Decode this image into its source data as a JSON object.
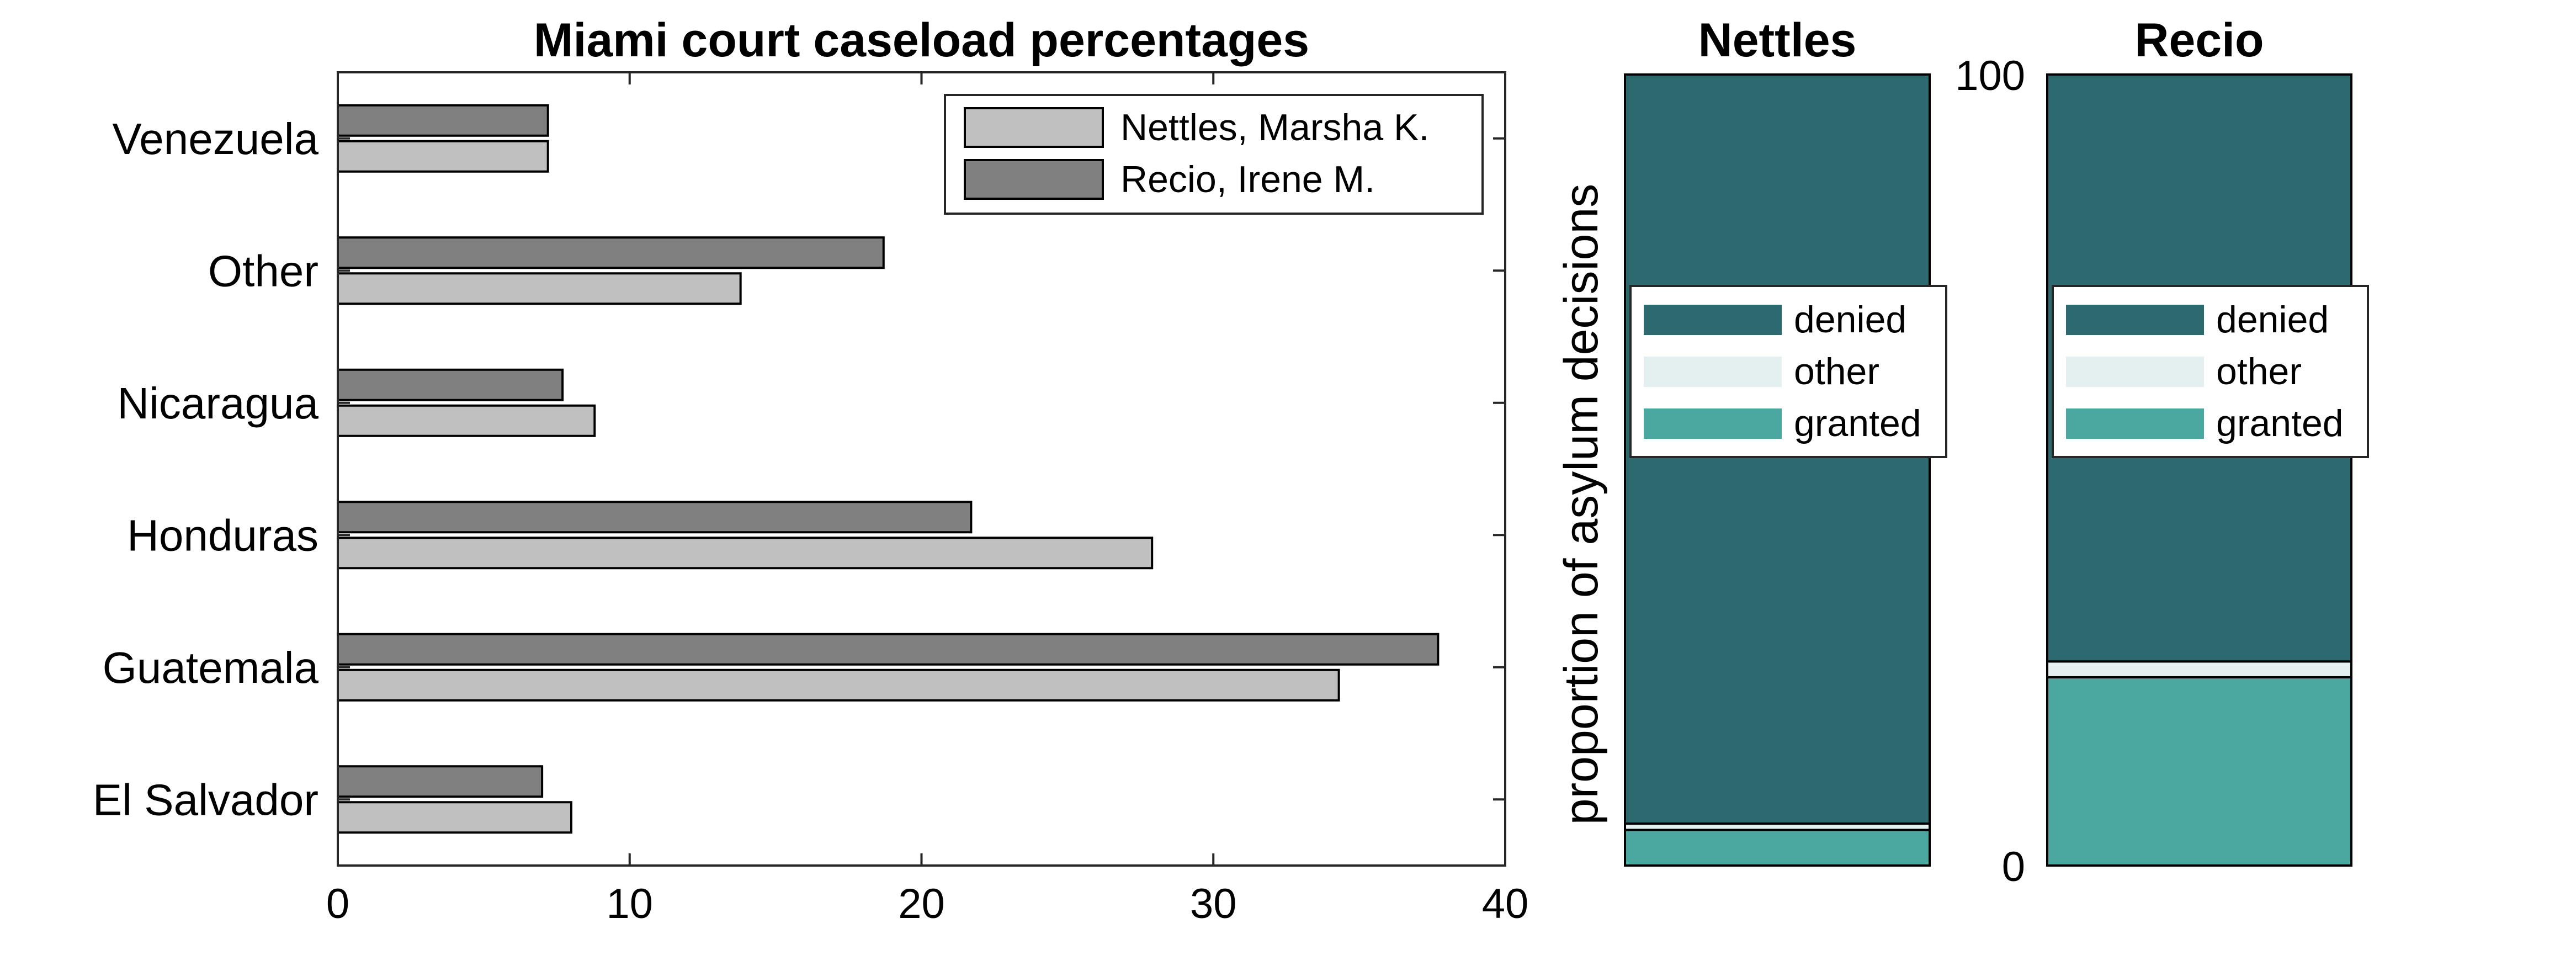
{
  "chart_data": [
    {
      "type": "bar",
      "orientation": "horizontal",
      "title": "Miami court caseload percentages",
      "categories": [
        "Venezuela",
        "Other",
        "Nicaragua",
        "Honduras",
        "Guatemala",
        "El Salvador"
      ],
      "series": [
        {
          "name": "Nettles, Marsha K.",
          "color": "#c0c0c0",
          "values": [
            7.2,
            13.8,
            8.8,
            27.9,
            34.3,
            8.0
          ]
        },
        {
          "name": "Recio, Irene M.",
          "color": "#808080",
          "values": [
            7.2,
            18.7,
            7.7,
            21.7,
            37.7,
            7.0
          ]
        }
      ],
      "xlim": [
        0,
        40
      ],
      "xticks": [
        "0",
        "10",
        "20",
        "30",
        "40"
      ],
      "legend_position": "top-right",
      "grid": false
    },
    {
      "type": "bar",
      "stacked": true,
      "title": "Nettles",
      "ylabel": "proportion of asylum decisions",
      "ylim": [
        0,
        100
      ],
      "segments": [
        {
          "name": "granted",
          "color": "#4aa8a0",
          "value": 4.5
        },
        {
          "name": "other",
          "color": "#e4eff0",
          "value": 0.8
        },
        {
          "name": "denied",
          "color": "#2d6a70",
          "value": 94.7
        }
      ],
      "legend_entries": [
        "denied",
        "other",
        "granted"
      ],
      "legend_position": "center"
    },
    {
      "type": "bar",
      "stacked": true,
      "title": "Recio",
      "ylim": [
        0,
        100
      ],
      "yticks": [
        "0",
        "100"
      ],
      "segments": [
        {
          "name": "granted",
          "color": "#4aa8a0",
          "value": 23.8
        },
        {
          "name": "other",
          "color": "#e4eff0",
          "value": 2.0
        },
        {
          "name": "denied",
          "color": "#2d6a70",
          "value": 74.2
        }
      ],
      "legend_entries": [
        "denied",
        "other",
        "granted"
      ],
      "legend_position": "center"
    }
  ]
}
